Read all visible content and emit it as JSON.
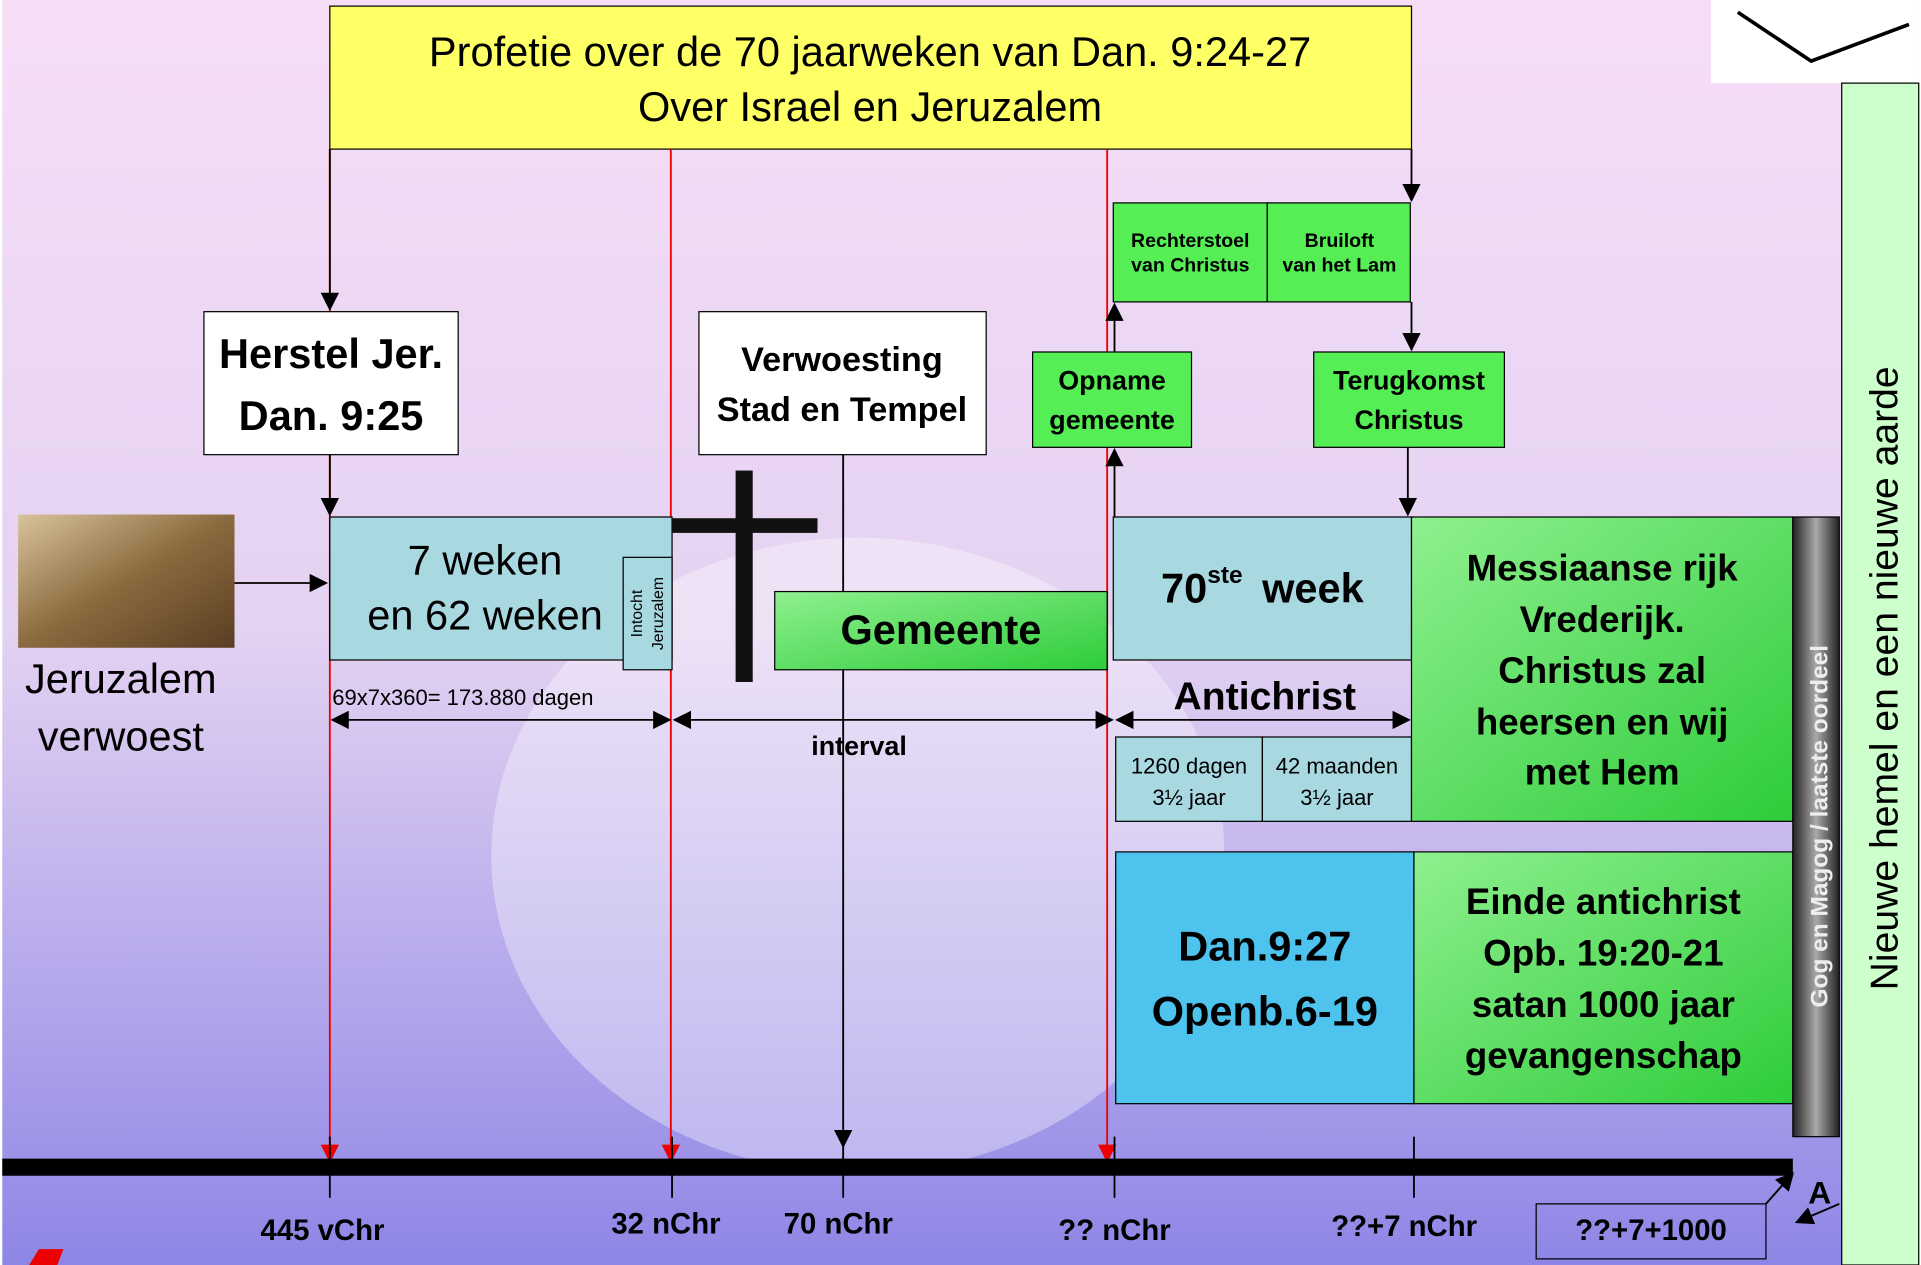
{
  "title": {
    "lines": [
      "Profetie over de 70 jaarweken van Dan. 9:24-27",
      "Over Israel en Jeruzalem"
    ]
  },
  "events": {
    "herstel": [
      "Herstel Jer.",
      "Dan. 9:25"
    ],
    "verwoesting": [
      "Verwoesting",
      "Stad en Tempel"
    ],
    "opname": [
      "Opname",
      "gemeente"
    ],
    "rechterstoel": [
      "Rechterstoel",
      "van Christus"
    ],
    "bruiloft": [
      "Bruiloft",
      "van het Lam"
    ],
    "terugkomst": [
      "Terugkomst",
      "Christus"
    ]
  },
  "jeruzalem": [
    "Jeruzalem",
    "verwoest"
  ],
  "weken": {
    "lines": [
      "7 weken",
      "en 62 weken"
    ],
    "intocht": [
      "Intocht",
      "Jeruzalem"
    ],
    "dagen": "69x7x360= 173.880 dagen"
  },
  "gemeente": "Gemeente",
  "interval": "interval",
  "week70": {
    "number": "70",
    "suffix": "ste",
    "word": "week"
  },
  "antichrist": {
    "title": "Antichrist",
    "periods": [
      [
        "1260 dagen",
        "3½ jaar"
      ],
      [
        "42 maanden",
        "3½ jaar"
      ]
    ]
  },
  "messiaanse": [
    "Messiaanse rijk",
    "Vrederijk.",
    "Christus zal",
    "heersen en wij",
    "met Hem"
  ],
  "dan927": [
    "Dan.9:27",
    "Openb.6-19"
  ],
  "einde": [
    "Einde antichrist",
    "Opb. 19:20-21",
    "satan 1000 jaar",
    "gevangenschap"
  ],
  "gog": "Gog en Magog / laatste oordeel",
  "nieuwe": "Nieuwe hemel en een nieuwe aarde",
  "timeline": [
    "445 vChr",
    "32 nChr",
    "70 nChr",
    "?? nChr",
    "??+7 nChr",
    "??+7+1000",
    "A"
  ]
}
